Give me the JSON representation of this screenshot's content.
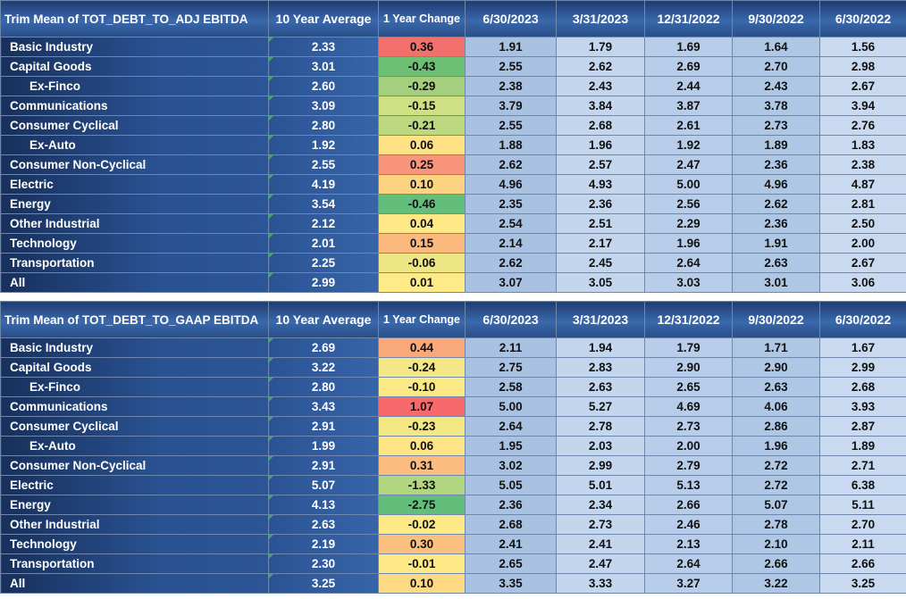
{
  "chart_data": [
    {
      "type": "table",
      "title": "Trim Mean of TOT_DEBT_TO_ADJ EBITDA",
      "columns": [
        "10 Year Average",
        "1 Year Change",
        "6/30/2023",
        "3/31/2023",
        "12/31/2022",
        "9/30/2022",
        "6/30/2022"
      ],
      "rows": [
        {
          "label": "Basic Industry",
          "sub": false,
          "avg": "2.33",
          "change": "0.36",
          "change_color": "#f2706c",
          "values": [
            "1.91",
            "1.79",
            "1.69",
            "1.64",
            "1.56"
          ]
        },
        {
          "label": "Capital Goods",
          "sub": false,
          "avg": "3.01",
          "change": "-0.43",
          "change_color": "#6cbf73",
          "values": [
            "2.55",
            "2.62",
            "2.69",
            "2.70",
            "2.98"
          ]
        },
        {
          "label": "Ex-Finco",
          "sub": true,
          "avg": "2.60",
          "change": "-0.29",
          "change_color": "#a4d07d",
          "values": [
            "2.38",
            "2.43",
            "2.44",
            "2.43",
            "2.67"
          ]
        },
        {
          "label": "Communications",
          "sub": false,
          "avg": "3.09",
          "change": "-0.15",
          "change_color": "#cfe082",
          "values": [
            "3.79",
            "3.84",
            "3.87",
            "3.78",
            "3.94"
          ]
        },
        {
          "label": "Consumer Cyclical",
          "sub": false,
          "avg": "2.80",
          "change": "-0.21",
          "change_color": "#bcd97f",
          "values": [
            "2.55",
            "2.68",
            "2.61",
            "2.73",
            "2.76"
          ]
        },
        {
          "label": "Ex-Auto",
          "sub": true,
          "avg": "1.92",
          "change": "0.06",
          "change_color": "#fee285",
          "values": [
            "1.88",
            "1.96",
            "1.92",
            "1.89",
            "1.83"
          ]
        },
        {
          "label": "Consumer Non-Cyclical",
          "sub": false,
          "avg": "2.55",
          "change": "0.25",
          "change_color": "#f8957a",
          "values": [
            "2.62",
            "2.57",
            "2.47",
            "2.36",
            "2.38"
          ]
        },
        {
          "label": "Electric",
          "sub": false,
          "avg": "4.19",
          "change": "0.10",
          "change_color": "#fdd382",
          "values": [
            "4.96",
            "4.93",
            "5.00",
            "4.96",
            "4.87"
          ]
        },
        {
          "label": "Energy",
          "sub": false,
          "avg": "3.54",
          "change": "-0.46",
          "change_color": "#63be7b",
          "values": [
            "2.35",
            "2.36",
            "2.56",
            "2.62",
            "2.81"
          ]
        },
        {
          "label": "Other Industrial",
          "sub": false,
          "avg": "2.12",
          "change": "0.04",
          "change_color": "#fee886",
          "values": [
            "2.54",
            "2.51",
            "2.29",
            "2.36",
            "2.50"
          ]
        },
        {
          "label": "Technology",
          "sub": false,
          "avg": "2.01",
          "change": "0.15",
          "change_color": "#fbb97e",
          "values": [
            "2.14",
            "2.17",
            "1.96",
            "1.91",
            "2.00"
          ]
        },
        {
          "label": "Transportation",
          "sub": false,
          "avg": "2.25",
          "change": "-0.06",
          "change_color": "#eee685",
          "values": [
            "2.62",
            "2.45",
            "2.64",
            "2.63",
            "2.67"
          ]
        },
        {
          "label": "All",
          "sub": false,
          "avg": "2.99",
          "change": "0.01",
          "change_color": "#feea87",
          "values": [
            "3.07",
            "3.05",
            "3.03",
            "3.01",
            "3.06"
          ]
        }
      ]
    },
    {
      "type": "table",
      "title": "Trim Mean of TOT_DEBT_TO_GAAP EBITDA",
      "columns": [
        "10 Year Average",
        "1 Year Change",
        "6/30/2023",
        "3/31/2023",
        "12/31/2022",
        "9/30/2022",
        "6/30/2022"
      ],
      "rows": [
        {
          "label": "Basic Industry",
          "sub": false,
          "avg": "2.69",
          "change": "0.44",
          "change_color": "#f9a87c",
          "values": [
            "2.11",
            "1.94",
            "1.79",
            "1.71",
            "1.67"
          ]
        },
        {
          "label": "Capital Goods",
          "sub": false,
          "avg": "3.22",
          "change": "-0.24",
          "change_color": "#f3e885",
          "values": [
            "2.75",
            "2.83",
            "2.90",
            "2.90",
            "2.99"
          ]
        },
        {
          "label": "Ex-Finco",
          "sub": true,
          "avg": "2.80",
          "change": "-0.10",
          "change_color": "#fbe986",
          "values": [
            "2.58",
            "2.63",
            "2.65",
            "2.63",
            "2.68"
          ]
        },
        {
          "label": "Communications",
          "sub": false,
          "avg": "3.43",
          "change": "1.07",
          "change_color": "#f8696b",
          "values": [
            "5.00",
            "5.27",
            "4.69",
            "4.06",
            "3.93"
          ]
        },
        {
          "label": "Consumer Cyclical",
          "sub": false,
          "avg": "2.91",
          "change": "-0.23",
          "change_color": "#f4e885",
          "values": [
            "2.64",
            "2.78",
            "2.73",
            "2.86",
            "2.87"
          ]
        },
        {
          "label": "Ex-Auto",
          "sub": true,
          "avg": "1.99",
          "change": "0.06",
          "change_color": "#fee485",
          "values": [
            "1.95",
            "2.03",
            "2.00",
            "1.96",
            "1.89"
          ]
        },
        {
          "label": "Consumer Non-Cyclical",
          "sub": false,
          "avg": "2.91",
          "change": "0.31",
          "change_color": "#fbbd7f",
          "values": [
            "3.02",
            "2.99",
            "2.79",
            "2.72",
            "2.71"
          ]
        },
        {
          "label": "Electric",
          "sub": false,
          "avg": "5.07",
          "change": "-1.33",
          "change_color": "#b2d680",
          "values": [
            "5.05",
            "5.01",
            "5.13",
            "2.72",
            "6.38"
          ]
        },
        {
          "label": "Energy",
          "sub": false,
          "avg": "4.13",
          "change": "-2.75",
          "change_color": "#63be7b",
          "values": [
            "2.36",
            "2.34",
            "2.66",
            "5.07",
            "5.11"
          ]
        },
        {
          "label": "Other Industrial",
          "sub": false,
          "avg": "2.63",
          "change": "-0.02",
          "change_color": "#fee987",
          "values": [
            "2.68",
            "2.73",
            "2.46",
            "2.78",
            "2.70"
          ]
        },
        {
          "label": "Technology",
          "sub": false,
          "avg": "2.19",
          "change": "0.30",
          "change_color": "#fbc07f",
          "values": [
            "2.41",
            "2.41",
            "2.13",
            "2.10",
            "2.11"
          ]
        },
        {
          "label": "Transportation",
          "sub": false,
          "avg": "2.30",
          "change": "-0.01",
          "change_color": "#fee987",
          "values": [
            "2.65",
            "2.47",
            "2.64",
            "2.66",
            "2.66"
          ]
        },
        {
          "label": "All",
          "sub": false,
          "avg": "3.25",
          "change": "0.10",
          "change_color": "#fdd983",
          "values": [
            "3.35",
            "3.33",
            "3.27",
            "3.22",
            "3.25"
          ]
        }
      ]
    }
  ]
}
